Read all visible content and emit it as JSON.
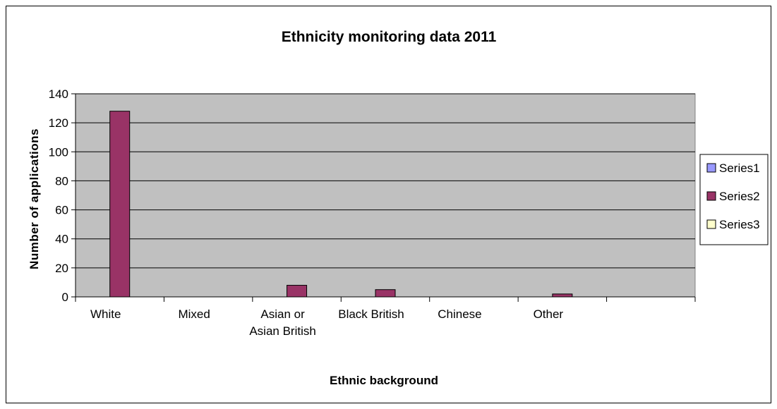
{
  "chart_data": {
    "type": "bar",
    "title": "Ethnicity monitoring data 2011",
    "xlabel": "Ethnic background",
    "ylabel": "Number of applications",
    "categories": [
      [
        "White"
      ],
      [
        "Mixed"
      ],
      [
        "Asian or",
        "Asian British"
      ],
      [
        "Black British"
      ],
      [
        "Chinese"
      ],
      [
        "Other"
      ],
      [
        ""
      ]
    ],
    "series": [
      {
        "name": "Series1",
        "color": "#9999ff",
        "values": [
          0,
          0,
          0,
          0,
          0,
          0,
          0
        ]
      },
      {
        "name": "Series2",
        "color": "#993366",
        "values": [
          128,
          0,
          8,
          5,
          0,
          2,
          0
        ]
      },
      {
        "name": "Series3",
        "color": "#ffffcc",
        "values": [
          0,
          0,
          0,
          0,
          0,
          0,
          0
        ]
      }
    ],
    "ylim": [
      0,
      140
    ],
    "yticks": [
      0,
      20,
      40,
      60,
      80,
      100,
      120,
      140
    ],
    "grid": true,
    "plot_background": "#c0c0c0",
    "legend_position": "right"
  }
}
